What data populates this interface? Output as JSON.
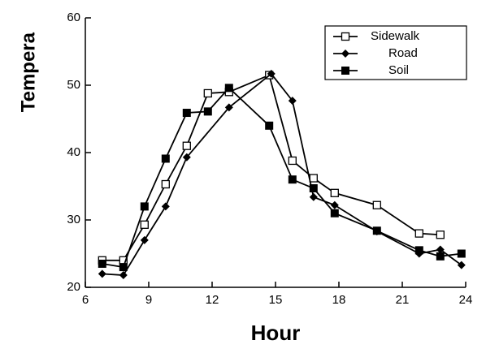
{
  "chart_data": {
    "type": "line",
    "y_label": "Tempera",
    "x_label": "Hour",
    "xlim": [
      6,
      24
    ],
    "xticks": [
      6,
      9,
      12,
      15,
      18,
      21,
      24
    ],
    "ylim": [
      20,
      60
    ],
    "yticks": [
      20,
      30,
      40,
      50,
      60
    ],
    "legend": "upper right",
    "series": [
      {
        "name": "Sidewalk",
        "marker": "open-square",
        "color": "#000000",
        "x": [
          6.8,
          7.8,
          8.8,
          9.8,
          10.8,
          11.8,
          12.8,
          14.7,
          15.8,
          16.8,
          17.8,
          19.8,
          21.8,
          22.8
        ],
        "values": [
          24,
          24,
          29.3,
          35.3,
          41,
          48.8,
          49,
          51.5,
          38.8,
          36.2,
          34,
          32.2,
          28,
          27.8
        ]
      },
      {
        "name": "Road",
        "marker": "diamond",
        "color": "#000000",
        "x": [
          6.8,
          7.8,
          8.8,
          9.8,
          10.8,
          12.8,
          14.8,
          15.8,
          16.8,
          17.8,
          19.8,
          21.8,
          22.8,
          23.8
        ],
        "values": [
          22,
          21.8,
          27,
          32,
          39.3,
          46.7,
          51.7,
          47.7,
          33.4,
          32.2,
          28.3,
          25,
          25.6,
          23.3
        ]
      },
      {
        "name": "Soil",
        "marker": "filled-square",
        "color": "#000000",
        "x": [
          6.8,
          7.8,
          8.8,
          9.8,
          10.8,
          11.8,
          12.8,
          14.7,
          15.8,
          16.8,
          17.8,
          19.8,
          21.8,
          22.8,
          23.8
        ],
        "values": [
          23.5,
          23,
          32,
          39.1,
          45.9,
          46.1,
          49.6,
          44,
          36,
          34.7,
          31,
          28.4,
          25.5,
          24.6,
          25
        ]
      }
    ]
  }
}
